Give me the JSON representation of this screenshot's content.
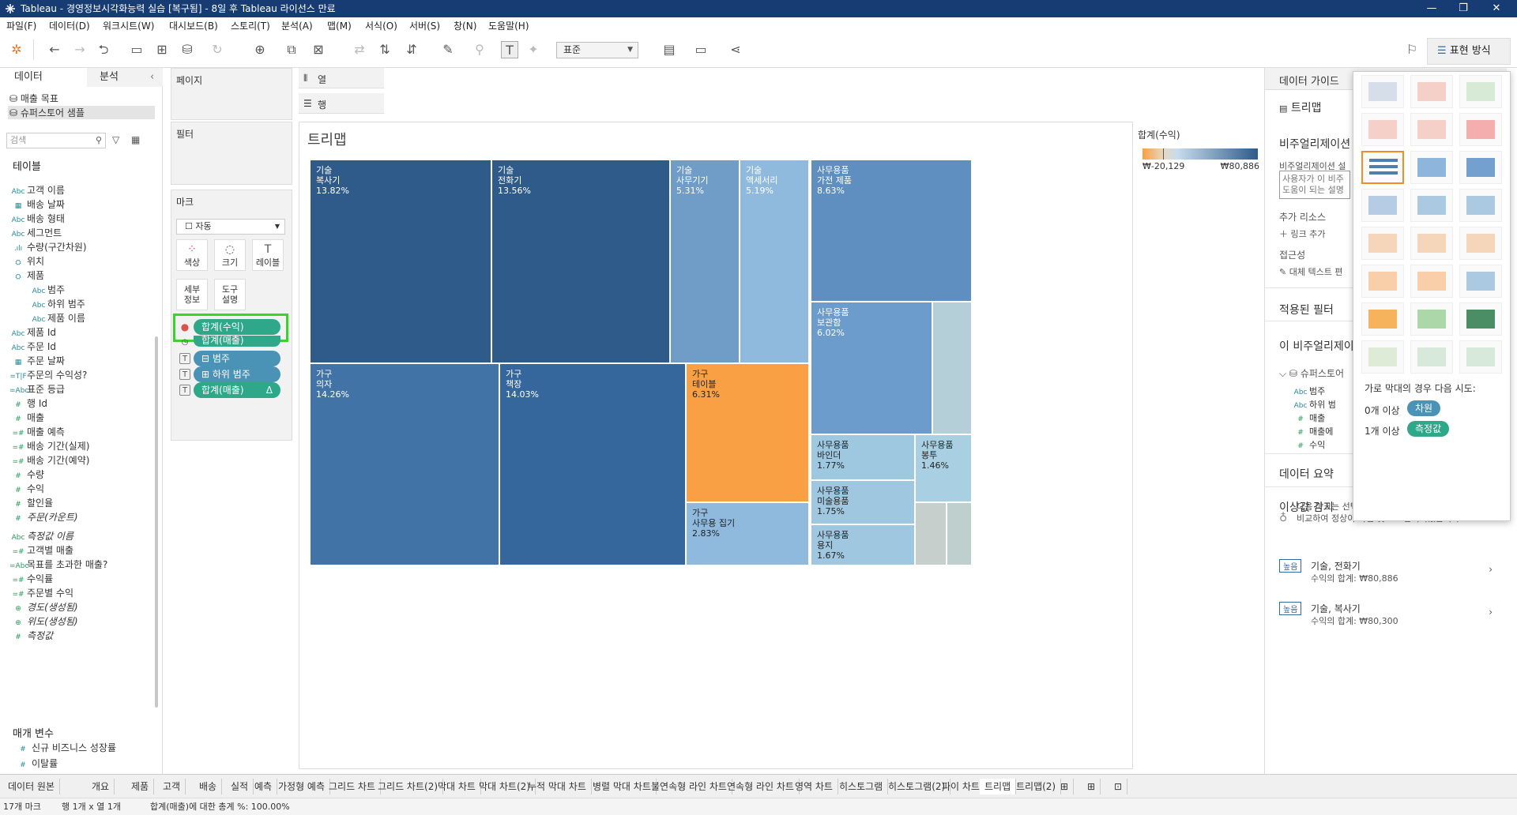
{
  "window": {
    "title": "Tableau - 경영정보시각화능력 실습 [복구됨] - 8일 후 Tableau 라이선스 만료",
    "min_glyph": "—",
    "max_glyph": "❐",
    "close_glyph": "✕"
  },
  "menu": [
    "파일(F)",
    "데이터(D)",
    "워크시트(W)",
    "대시보드(B)",
    "스토리(T)",
    "분석(A)",
    "맵(M)",
    "서식(O)",
    "서버(S)",
    "창(N)",
    "도움말(H)"
  ],
  "toolbar": {
    "fit_select": "표준",
    "showme_label": "표현 방식"
  },
  "data_pane": {
    "tab_data": "데이터",
    "tab_analysis": "분석",
    "sources": [
      "매출 목표",
      "슈퍼스토어 샘플"
    ],
    "search_placeholder": "검색",
    "tables_header": "테이블",
    "fields": [
      {
        "icon": "Abc",
        "name": "고객 이름"
      },
      {
        "icon": "▦",
        "name": "배송 날짜"
      },
      {
        "icon": "Abc",
        "name": "배송 형태"
      },
      {
        "icon": "Abc",
        "name": "세그먼트"
      },
      {
        "icon": ".ılı",
        "name": "수량(구간차원)"
      },
      {
        "icon": "⛭",
        "name": "위치"
      },
      {
        "icon": "⛭",
        "name": "제품"
      },
      {
        "icon": "Abc",
        "name": "범주"
      },
      {
        "icon": "Abc",
        "name": "하위 범주"
      },
      {
        "icon": "Abc",
        "name": "제품 이름"
      },
      {
        "icon": "Abc",
        "name": "제품 Id"
      },
      {
        "icon": "Abc",
        "name": "주문 Id"
      },
      {
        "icon": "▦",
        "name": "주문 날짜"
      },
      {
        "icon": "=T|F",
        "name": "주문의 수익성?"
      },
      {
        "icon": "=Abc",
        "name": "표준 등급"
      },
      {
        "icon": "#",
        "name": "행 Id"
      },
      {
        "icon": "#",
        "name": "매출"
      },
      {
        "icon": "=#",
        "name": "매출 예측"
      },
      {
        "icon": "=#",
        "name": "배송 기간(실제)"
      },
      {
        "icon": "=#",
        "name": "배송 기간(예약)"
      },
      {
        "icon": "#",
        "name": "수량"
      },
      {
        "icon": "#",
        "name": "수익"
      },
      {
        "icon": "#",
        "name": "할인율"
      },
      {
        "icon": "#",
        "name": "주문(카운트)"
      },
      {
        "icon": "Abc",
        "name": "측정값 이름"
      },
      {
        "icon": "=#",
        "name": "고객별 매출"
      },
      {
        "icon": "=Abc",
        "name": "목표를 초과한 매출?"
      },
      {
        "icon": "=#",
        "name": "수익률"
      },
      {
        "icon": "=#",
        "name": "주문별 수익"
      },
      {
        "icon": "⊕",
        "name": "경도(생성됨)"
      },
      {
        "icon": "⊕",
        "name": "위도(생성됨)"
      },
      {
        "icon": "#",
        "name": "측정값"
      }
    ],
    "params_header": "매개 변수",
    "params": [
      {
        "icon": "#",
        "name": "신규 비즈니스 성장률"
      },
      {
        "icon": "#",
        "name": "이탈률"
      }
    ]
  },
  "shelves": {
    "pages": "페이지",
    "filters": "필터",
    "marks": "마크",
    "columns": "열",
    "rows": "행",
    "mark_type": "자동",
    "mark_buttons": [
      "색상",
      "크기",
      "레이블",
      "세부\n정보",
      "도구\n설명"
    ],
    "mark_pills": [
      {
        "icon": "●",
        "label": "합계(수익)"
      },
      {
        "icon": "◷",
        "label": "합계(매출)"
      },
      {
        "icon": "T",
        "label": "⊟ 범주"
      },
      {
        "icon": "T",
        "label": "⊞ 하위 범주"
      },
      {
        "icon": "T",
        "label": "합계(매출)",
        "tail": "Δ"
      }
    ]
  },
  "sheet": {
    "title": "트리맵",
    "tiles": [
      {
        "cat": "기술",
        "sub": "복사기",
        "pct": "13.82%",
        "color": "#2e5b8a"
      },
      {
        "cat": "기술",
        "sub": "전화기",
        "pct": "13.56%",
        "color": "#2e5b8a"
      },
      {
        "cat": "기술",
        "sub": "사무기기",
        "pct": "5.31%",
        "color": "#6f9dc8"
      },
      {
        "cat": "기술",
        "sub": "액세서리",
        "pct": "5.19%",
        "color": "#8fbade"
      },
      {
        "cat": "사무용품",
        "sub": "가전 제품",
        "pct": "8.63%",
        "color": "#5e8fc0"
      },
      {
        "cat": "가구",
        "sub": "의자",
        "pct": "14.26%",
        "color": "#4273a6"
      },
      {
        "cat": "가구",
        "sub": "책장",
        "pct": "14.03%",
        "color": "#36679c"
      },
      {
        "cat": "가구",
        "sub": "테이블",
        "pct": "6.31%",
        "color": "#f8a043"
      },
      {
        "cat": "가구",
        "sub": "사무용 집기",
        "pct": "2.83%",
        "color": "#8fbade"
      },
      {
        "cat": "사무용품",
        "sub": "보관함",
        "pct": "6.02%",
        "color": "#6b9ccc"
      },
      {
        "cat": "",
        "sub": "",
        "pct": "",
        "color": "#b5cfd8"
      },
      {
        "cat": "사무용품",
        "sub": "바인더",
        "pct": "1.77%",
        "color": "#9ec8e0"
      },
      {
        "cat": "사무용품",
        "sub": "봉투",
        "pct": "1.46%",
        "color": "#a9cfe2"
      },
      {
        "cat": "사무용품",
        "sub": "미술용품",
        "pct": "1.75%",
        "color": "#9fc7df"
      },
      {
        "cat": "사무용품",
        "sub": "용지",
        "pct": "1.67%",
        "color": "#9fc7df"
      },
      {
        "cat": "",
        "sub": "",
        "pct": "",
        "color": "#c6cfcb"
      },
      {
        "cat": "",
        "sub": "",
        "pct": "",
        "color": "#bfcfce"
      }
    ]
  },
  "legend": {
    "title": "합계(수익)",
    "min": "₩-20,129",
    "max": "₩80,886",
    "color_low": "#f8a043",
    "color_high": "#2e5b8a"
  },
  "guide": {
    "title": "데이터 가이드",
    "chart_name": "트리맵",
    "viz_desc_header": "비주얼리제이션 설명",
    "viz_desc_sub": "비주얼리제이션 설",
    "viz_desc_text1": "사용자가 이 비주",
    "viz_desc_text2": "도움이 되는 설명",
    "extra_resources": "추가 리소스",
    "add_link": "링크 추가",
    "accessibility": "접근성",
    "alt_text": "대체 텍스트 편",
    "applied_filters": "적용된 필터",
    "this_viz": "이 비주얼리제이",
    "source_name": "슈퍼스토어",
    "viz_fields": [
      {
        "icon": "Abc",
        "name": "범주"
      },
      {
        "icon": "Abc",
        "name": "하위 범"
      },
      {
        "icon": "#",
        "name": "매출"
      },
      {
        "icon": "#",
        "name": "매출에"
      },
      {
        "icon": "#",
        "name": "수익"
      }
    ],
    "data_summary": "데이터 요약",
    "outlier_detection": "이상값 감지",
    "outlier_desc": "다음 마크는 선택한 비주얼리제이션의 다른 마크와 비교하여 정상이 아닌 것으로 감지되었습니다.",
    "outliers": [
      {
        "badge": "높음",
        "name": "기술, 전화기",
        "value": "수익의 합계: ₩80,886"
      },
      {
        "badge": "높음",
        "name": "기술, 복사기",
        "value": "수익의 합계: ₩80,300"
      }
    ]
  },
  "showme": {
    "hint_title": "가로 막대의 경우 다음 시도:",
    "req1_label": "0개 이상",
    "req1_pill": "차원",
    "req2_label": "1개 이상",
    "req2_pill": "측정값"
  },
  "sheet_tabs": [
    "데이터 원본",
    "개요",
    "제품",
    "고객",
    "배송",
    "실적",
    "예측",
    "가정형 예측",
    "그리드 차트",
    "그리드 차트(2)",
    "막대 차트",
    "막대 차트(2)",
    "누적 막대 차트",
    "병렬 막대 차트",
    "불연속형 라인 차트",
    "연속형 라인 차트",
    "영역 차트",
    "히스토그램",
    "히스토그램(2)",
    "파이 차트",
    "트리맵",
    "트리맵(2)"
  ],
  "active_tab": "트리맵",
  "status": {
    "marks": "17개 마크",
    "rows_cols": "행 1개 x 열 1개",
    "total": "합계(매출)에 대한 총계 %: 100.00%"
  }
}
